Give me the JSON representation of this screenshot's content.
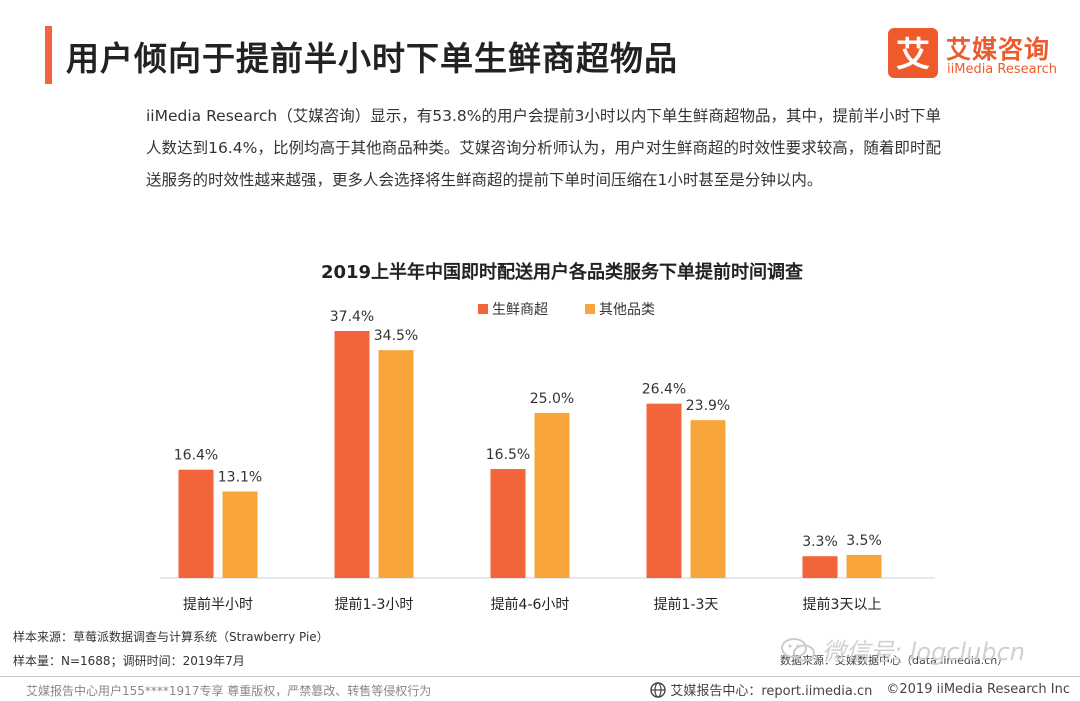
{
  "page": {
    "title": "用户倾向于提前半小时下单生鲜商超物品",
    "intro": "iiMedia Research（艾媒咨询）显示，有53.8%的用户会提前3小时以内下单生鲜商超物品，其中，提前半小时下单人数达到16.4%，比例均高于其他商品种类。艾媒咨询分析师认为，用户对生鲜商超的时效性要求较高，随着即时配送服务的时效性越来越强，更多人会选择将生鲜商超的提前下单时间压缩在1小时甚至是分钟以内。"
  },
  "logo": {
    "cn": "艾媒咨询",
    "en": "iiMedia Research",
    "mark": "艾"
  },
  "chart_data": {
    "type": "bar",
    "title": "2019上半年中国即时配送用户各品类服务下单提前时间调查",
    "categories": [
      "提前半小时",
      "提前1-3小时",
      "提前4-6小时",
      "提前1-3天",
      "提前3天以上"
    ],
    "series": [
      {
        "name": "生鲜商超",
        "values": [
          16.4,
          37.4,
          16.5,
          26.4,
          3.3
        ],
        "color": "#f2653a"
      },
      {
        "name": "其他品类",
        "values": [
          13.1,
          34.5,
          25.0,
          23.9,
          3.5
        ],
        "color": "#f8a53c"
      }
    ],
    "value_suffix": "%",
    "ylim": [
      0,
      40
    ],
    "grid": false,
    "legend_position": "top-center"
  },
  "footnotes": {
    "source": "样本来源：草莓派数据调查与计算系统（Strawberry Pie）",
    "sample": "样本量：N=1688；调研时间：2019年7月"
  },
  "footer": {
    "left": "艾媒报告中心用户155****1917专享 尊重版权，严禁篡改、转售等侵权行为",
    "center": "艾媒报告中心：report.iimedia.cn",
    "copyright": "©2019  iiMedia Research  Inc"
  },
  "watermark": {
    "text": "微信号: logclubcn",
    "source": "数据来源：艾媒数据中心（data.iimedia.cn）"
  },
  "colors": {
    "accent": "#f2653a",
    "secondary": "#f8a53c",
    "logo": "#ee5a2c"
  }
}
